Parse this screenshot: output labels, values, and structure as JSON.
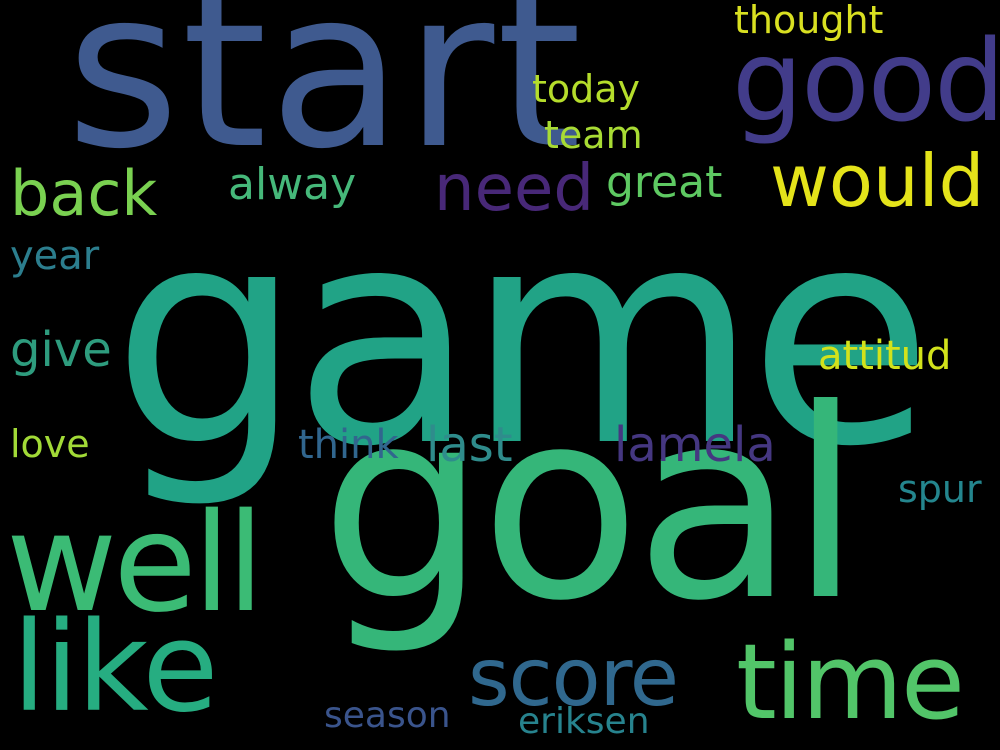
{
  "background_color": "#000000",
  "words": [
    {
      "text": "game",
      "color": "#21a386"
    },
    {
      "text": "start",
      "color": "#3f5a8f"
    },
    {
      "text": "goal",
      "color": "#35b679"
    },
    {
      "text": "good",
      "color": "#423c8a"
    },
    {
      "text": "would",
      "color": "#e4e31a"
    },
    {
      "text": "back",
      "color": "#7ad151"
    },
    {
      "text": "need",
      "color": "#482878"
    },
    {
      "text": "alway",
      "color": "#46b87a"
    },
    {
      "text": "great",
      "color": "#5ec962"
    },
    {
      "text": "thought",
      "color": "#d9e021"
    },
    {
      "text": "today",
      "color": "#b5dd2b"
    },
    {
      "text": "team",
      "color": "#a8db34"
    },
    {
      "text": "year",
      "color": "#2c7e8e"
    },
    {
      "text": "give",
      "color": "#2e9c7e"
    },
    {
      "text": "attitud",
      "color": "#d2e21b"
    },
    {
      "text": "love",
      "color": "#a2da37"
    },
    {
      "text": "think",
      "color": "#31668e"
    },
    {
      "text": "last",
      "color": "#2f8c8c"
    },
    {
      "text": "lamela",
      "color": "#453781"
    },
    {
      "text": "spur",
      "color": "#24868e"
    },
    {
      "text": "well",
      "color": "#3bbb75"
    },
    {
      "text": "like",
      "color": "#26ad81"
    },
    {
      "text": "score",
      "color": "#30688e"
    },
    {
      "text": "time",
      "color": "#52c569"
    },
    {
      "text": "season",
      "color": "#3a548c"
    },
    {
      "text": "eriksen",
      "color": "#27838e"
    }
  ]
}
